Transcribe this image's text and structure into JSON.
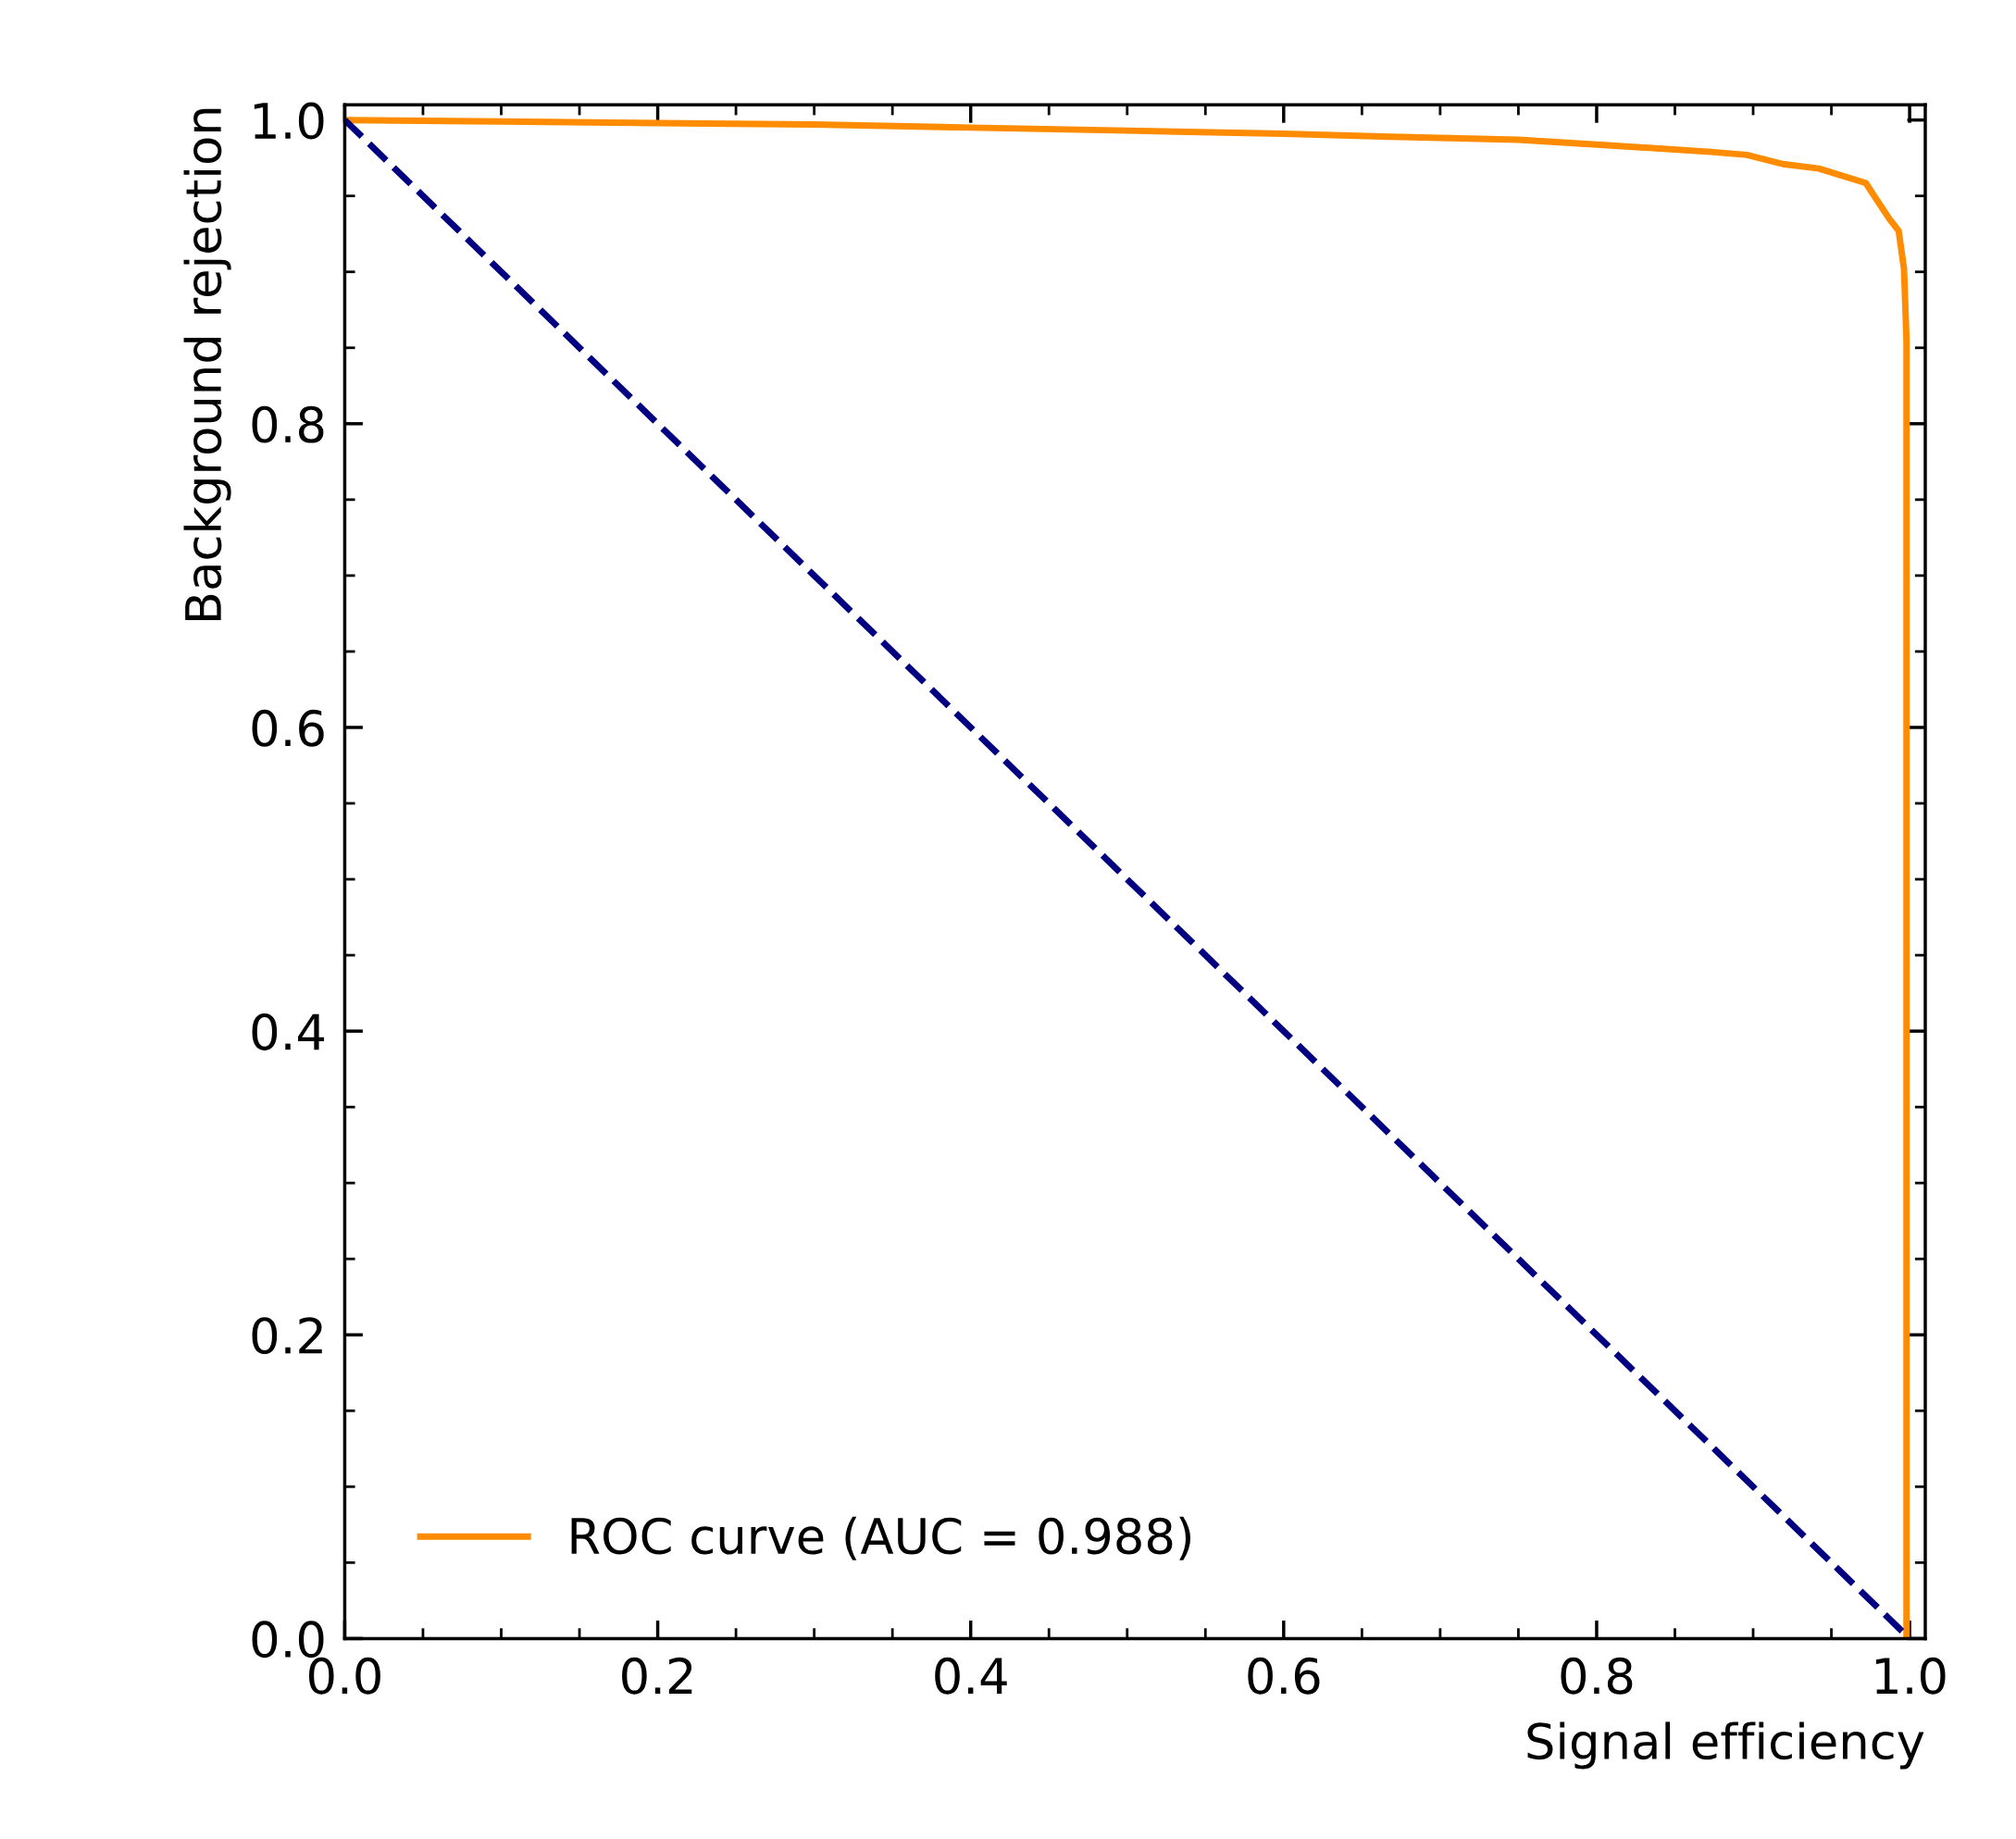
{
  "chart_data": {
    "type": "line",
    "xlabel": "Signal efficiency",
    "ylabel": "Background rejection",
    "xlim": [
      0,
      1.01
    ],
    "ylim": [
      0,
      1.01
    ],
    "xticks": [
      {
        "value": 0,
        "label": "0.0"
      },
      0.2,
      0.4,
      0.6,
      0.8,
      {
        "value": 1,
        "label": "1.0"
      }
    ],
    "yticks": [
      {
        "value": 0,
        "label": "0.0"
      },
      0.2,
      0.4,
      0.6,
      0.8,
      {
        "value": 1,
        "label": "1.0"
      }
    ],
    "legend": "bottom left",
    "grid": false,
    "series": [
      {
        "name": "ROC curve (AUC = 0.988)",
        "color": "#ff8c00",
        "line_style": "solid",
        "x": [
          0,
          0.1,
          0.2,
          0.3,
          0.4,
          0.5,
          0.6,
          0.668,
          0.75,
          0.805,
          0.873,
          0.896,
          0.919,
          0.942,
          0.972,
          0.978,
          0.987,
          0.993,
          0.9964,
          0.998,
          0.998,
          0.998
        ],
        "values": [
          1.0,
          0.999,
          0.998,
          0.997,
          0.995,
          0.993,
          0.991,
          0.989,
          0.987,
          0.9835,
          0.979,
          0.977,
          0.971,
          0.968,
          0.9585,
          0.949,
          0.935,
          0.927,
          0.902,
          0.855,
          0.6,
          0
        ]
      },
      {
        "color": "#000080",
        "line_style": "dashed",
        "x": [
          0,
          1
        ],
        "values": [
          1,
          0
        ]
      }
    ]
  }
}
